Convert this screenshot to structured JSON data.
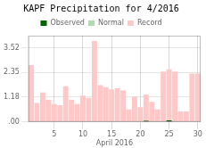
{
  "chart_data": {
    "type": "bar",
    "title": "KAPF Precipitation for 4/2016",
    "xlabel": "April 2016",
    "categories": [
      null,
      null,
      null,
      null,
      "5",
      null,
      null,
      null,
      null,
      "10",
      null,
      null,
      null,
      null,
      "15",
      null,
      null,
      null,
      null,
      "20",
      null,
      null,
      null,
      null,
      "25",
      null,
      null,
      null,
      null,
      "30"
    ],
    "series": [
      {
        "name": "Observed",
        "color": "#006400",
        "values": [
          0.0,
          0.0,
          0.0,
          0.0,
          0.0,
          0.0,
          0.0,
          0.0,
          0.0,
          0.0,
          0.0,
          0.0,
          0.0,
          0.0,
          0.0,
          0.0,
          0.0,
          0.0,
          0.0,
          0.0,
          0.05,
          0.0,
          0.0,
          0.0,
          0.08,
          0.0,
          0.0,
          0.0,
          0.0,
          0.0
        ]
      },
      {
        "name": "Normal",
        "color": "#aaddaa",
        "values": [
          null,
          null,
          null,
          null,
          null,
          null,
          null,
          null,
          null,
          null,
          null,
          null,
          null,
          null,
          null,
          null,
          null,
          null,
          null,
          null,
          null,
          null,
          null,
          null,
          null,
          null,
          null,
          null,
          null,
          null
        ]
      },
      {
        "name": "Record",
        "color": "#ffc8c8",
        "values": [
          2.7,
          0.9,
          1.4,
          1.05,
          0.85,
          0.8,
          1.7,
          1.05,
          0.85,
          1.25,
          1.15,
          3.85,
          1.75,
          1.65,
          1.55,
          1.6,
          1.5,
          0.6,
          1.2,
          0.7,
          1.3,
          0.95,
          0.6,
          2.4,
          2.5,
          2.4,
          0.5,
          0.5,
          2.3,
          2.3
        ]
      }
    ],
    "ylim": [
      0,
      4.1
    ],
    "yticks": [
      {
        "value": 0,
        "label": ".00"
      },
      1.18,
      2.35,
      3.52
    ],
    "grid": true,
    "legend": "top"
  }
}
